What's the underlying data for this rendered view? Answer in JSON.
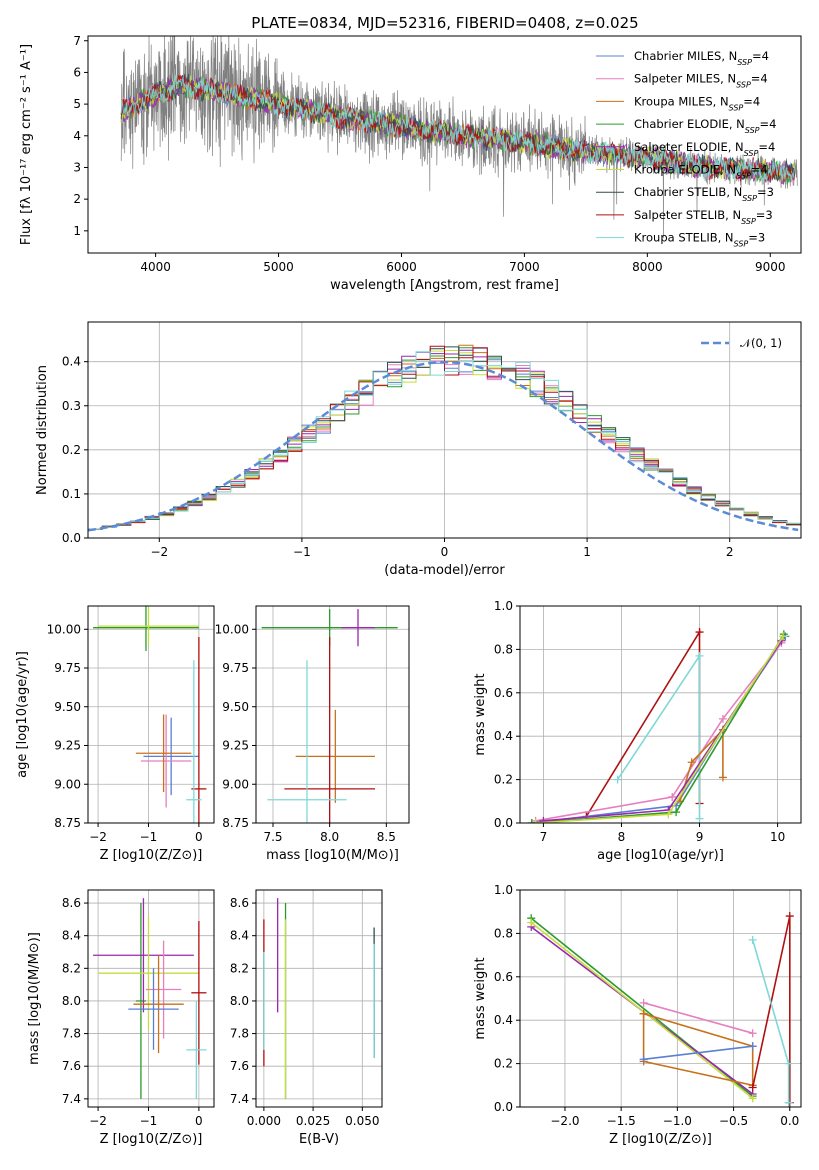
{
  "figure": {
    "title": "PLATE=0834, MJD=52316, FIBERID=0408, z=0.025"
  },
  "chart_data": [
    {
      "id": "spectrum",
      "type": "line",
      "xlabel": "wavelength [Angstrom, rest frame]",
      "ylabel": "Flux [fλ 10⁻¹⁷ erg cm⁻² s⁻¹ A⁻¹]",
      "xlim": [
        3450,
        9250
      ],
      "ylim": [
        0.3,
        7.15
      ],
      "xticks": [
        4000,
        5000,
        6000,
        7000,
        8000,
        9000
      ],
      "yticks": [
        1,
        2,
        3,
        4,
        5,
        6,
        7
      ],
      "grid": false,
      "legend_position": "top-right",
      "observed_color": "#808080",
      "continuum_points": [
        [
          3720,
          4.8
        ],
        [
          3800,
          4.9
        ],
        [
          4000,
          5.3
        ],
        [
          4200,
          5.6
        ],
        [
          4500,
          5.4
        ],
        [
          5000,
          5.0
        ],
        [
          5500,
          4.6
        ],
        [
          6000,
          4.3
        ],
        [
          6500,
          4.0
        ],
        [
          7000,
          3.8
        ],
        [
          7500,
          3.5
        ],
        [
          8000,
          3.3
        ],
        [
          8500,
          3.0
        ],
        [
          9000,
          2.9
        ],
        [
          9200,
          2.8
        ]
      ],
      "series": [
        {
          "name": "Chabrier MILES, N",
          "sub": "SSP",
          "suffix": "=4",
          "color": "#5b7fd6"
        },
        {
          "name": "Salpeter MILES, N",
          "sub": "SSP",
          "suffix": "=4",
          "color": "#e77fbf"
        },
        {
          "name": "Kroupa MILES, N",
          "sub": "SSP",
          "suffix": "=4",
          "color": "#c8711c"
        },
        {
          "name": "Chabrier ELODIE, N",
          "sub": "SSP",
          "suffix": "=4",
          "color": "#2e9a2e"
        },
        {
          "name": "Salpeter ELODIE, N",
          "sub": "SSP",
          "suffix": "=4",
          "color": "#9c27b0"
        },
        {
          "name": "Kroupa ELODIE, N",
          "sub": "SSP",
          "suffix": "=4",
          "color": "#c6dd3e"
        },
        {
          "name": "Chabrier STELIB, N",
          "sub": "SSP",
          "suffix": "=3",
          "color": "#2f4f4f"
        },
        {
          "name": "Salpeter STELIB, N",
          "sub": "SSP",
          "suffix": "=3",
          "color": "#b01010"
        },
        {
          "name": "Kroupa STELIB, N",
          "sub": "SSP",
          "suffix": "=3",
          "color": "#7fd8d8"
        }
      ]
    },
    {
      "id": "residuals",
      "type": "line",
      "xlabel": "(data-model)/error",
      "ylabel": "Normed distribution",
      "xlim": [
        -2.5,
        2.5
      ],
      "ylim": [
        0,
        0.49
      ],
      "xticks": [
        -2,
        -1,
        0,
        1,
        2
      ],
      "yticks": [
        0.0,
        0.1,
        0.2,
        0.3,
        0.4
      ],
      "grid": true,
      "legend_position": "top-right",
      "reference_curve": {
        "name": "𝒩(0, 1)",
        "mean": 0,
        "sigma": 1,
        "color": "#5b8bd6"
      },
      "bin_width": 0.1
    },
    {
      "id": "age-vs-Z",
      "type": "scatter",
      "xlabel": "Z [log10(Z/Z⊙)]",
      "ylabel": "age  [log10(age/yr)]",
      "xlim": [
        -2.2,
        0.3
      ],
      "ylim": [
        8.75,
        10.15
      ],
      "xticks": [
        -2,
        -1,
        0
      ],
      "yticks": [
        8.75,
        9.0,
        9.25,
        9.5,
        9.75,
        10.0
      ],
      "grid": true,
      "points": [
        {
          "x": -1.05,
          "y": 10.01,
          "xerr": 1.05,
          "yerr": 0.15,
          "color": "#2e9a2e"
        },
        {
          "x": -1.0,
          "y": 10.02,
          "xerr": 1.0,
          "yerr": 0.12,
          "color": "#c6dd3e"
        },
        {
          "x": -0.55,
          "y": 9.18,
          "xerr": 0.55,
          "yerr": 0.25,
          "color": "#5b7fd6"
        },
        {
          "x": -0.65,
          "y": 9.15,
          "xerr": 0.5,
          "yerr": 0.3,
          "color": "#e77fbf"
        },
        {
          "x": -0.7,
          "y": 9.2,
          "xerr": 0.55,
          "yerr": 0.25,
          "color": "#c8711c"
        },
        {
          "x": 0.0,
          "y": 8.97,
          "xerr": 0.15,
          "yerr": 0.98,
          "color": "#b01010"
        },
        {
          "x": -0.1,
          "y": 8.9,
          "xerr": 0.15,
          "yerr": 0.9,
          "color": "#7fd8d8"
        }
      ]
    },
    {
      "id": "age-vs-mass",
      "type": "scatter",
      "xlabel": "mass [log10(M/M⊙)]",
      "ylabel": "",
      "xlim": [
        7.35,
        8.7
      ],
      "ylim": [
        8.75,
        10.15
      ],
      "xticks": [
        7.5,
        8.0,
        8.5
      ],
      "yticks": [
        8.75,
        9.0,
        9.25,
        9.5,
        9.75,
        10.0
      ],
      "grid": true,
      "points": [
        {
          "x": 8.0,
          "y": 10.01,
          "xerr": 0.6,
          "yerr": 0.12,
          "color": "#2e9a2e"
        },
        {
          "x": 8.25,
          "y": 10.01,
          "xerr": 0.15,
          "yerr": 0.12,
          "color": "#9c27b0"
        },
        {
          "x": 8.05,
          "y": 9.18,
          "xerr": 0.35,
          "yerr": 0.3,
          "color": "#c8711c"
        },
        {
          "x": 8.0,
          "y": 8.97,
          "xerr": 0.4,
          "yerr": 0.98,
          "color": "#b01010"
        },
        {
          "x": 7.8,
          "y": 8.9,
          "xerr": 0.35,
          "yerr": 0.9,
          "color": "#7fd8d8"
        }
      ]
    },
    {
      "id": "weight-vs-age",
      "type": "line",
      "xlabel": "age  [log10(age/yr)]",
      "ylabel": "mass weight",
      "xlim": [
        6.7,
        10.3
      ],
      "ylim": [
        0,
        1.0
      ],
      "xticks": [
        7,
        8,
        9,
        10
      ],
      "yticks": [
        0.0,
        0.2,
        0.4,
        0.6,
        0.8,
        1.0
      ],
      "grid": true,
      "series": [
        {
          "color": "#b01010",
          "x": [
            7.55,
            9.0,
            9.0
          ],
          "y": [
            0.03,
            0.88,
            0.09
          ]
        },
        {
          "color": "#7fd8d8",
          "x": [
            7.95,
            9.0,
            9.0
          ],
          "y": [
            0.2,
            0.77,
            0.02
          ]
        },
        {
          "color": "#5b7fd6",
          "x": [
            6.85,
            8.7,
            9.3,
            10.1
          ],
          "y": [
            0.0,
            0.08,
            0.43,
            0.86
          ]
        },
        {
          "color": "#e77fbf",
          "x": [
            6.9,
            8.65,
            9.3,
            10.05
          ],
          "y": [
            0.01,
            0.12,
            0.48,
            0.83
          ]
        },
        {
          "color": "#c8711c",
          "x": [
            8.75,
            8.9,
            9.3,
            9.3
          ],
          "y": [
            0.1,
            0.28,
            0.43,
            0.21
          ]
        },
        {
          "color": "#2e9a2e",
          "x": [
            6.85,
            8.7,
            10.08
          ],
          "y": [
            0.0,
            0.05,
            0.87
          ]
        },
        {
          "color": "#9c27b0",
          "x": [
            7.0,
            8.6,
            10.05
          ],
          "y": [
            0.01,
            0.06,
            0.84
          ]
        },
        {
          "color": "#c6dd3e",
          "x": [
            6.9,
            8.6,
            10.07
          ],
          "y": [
            0.0,
            0.04,
            0.86
          ]
        }
      ]
    },
    {
      "id": "mass-vs-Z",
      "type": "scatter",
      "xlabel": "Z [log10(Z/Z⊙)]",
      "ylabel": "mass [log10(M/M⊙)]",
      "xlim": [
        -2.2,
        0.3
      ],
      "ylim": [
        7.35,
        8.68
      ],
      "xticks": [
        -2,
        -1,
        0
      ],
      "yticks": [
        7.4,
        7.6,
        7.8,
        8.0,
        8.2,
        8.4,
        8.6
      ],
      "grid": true,
      "points": [
        {
          "x": -1.15,
          "y": 8.0,
          "xerr": 0.1,
          "yerr": 0.6,
          "color": "#2e9a2e"
        },
        {
          "x": -1.1,
          "y": 8.28,
          "xerr": 1.0,
          "yerr": 0.35,
          "color": "#9c27b0"
        },
        {
          "x": -1.0,
          "y": 8.17,
          "xerr": 1.0,
          "yerr": 0.35,
          "color": "#c6dd3e"
        },
        {
          "x": -0.7,
          "y": 8.07,
          "xerr": 0.35,
          "yerr": 0.3,
          "color": "#e77fbf"
        },
        {
          "x": -0.8,
          "y": 7.98,
          "xerr": 0.5,
          "yerr": 0.3,
          "color": "#c8711c"
        },
        {
          "x": -0.9,
          "y": 7.95,
          "xerr": 0.5,
          "yerr": 0.25,
          "color": "#5b7fd6"
        },
        {
          "x": 0.0,
          "y": 8.05,
          "xerr": 0.15,
          "yerr": 0.44,
          "color": "#b01010"
        },
        {
          "x": -0.05,
          "y": 7.7,
          "xerr": 0.2,
          "yerr": 0.3,
          "color": "#7fd8d8"
        }
      ]
    },
    {
      "id": "mass-vs-ebv",
      "type": "scatter",
      "xlabel": "E(B-V)",
      "ylabel": "",
      "xlim": [
        -0.004,
        0.06
      ],
      "ylim": [
        7.35,
        8.68
      ],
      "xticks": [
        0.0,
        0.025,
        0.05
      ],
      "yticks": [
        7.4,
        7.6,
        7.8,
        8.0,
        8.2,
        8.4,
        8.6
      ],
      "grid": true,
      "points": [
        {
          "x": 0.0,
          "y": 8.05,
          "xerr": 0,
          "yerr": 0.45,
          "color": "#b01010"
        },
        {
          "x": 0.0,
          "y": 8.0,
          "xerr": 0,
          "yerr": 0.3,
          "color": "#7fd8d8"
        },
        {
          "x": 0.007,
          "y": 8.28,
          "xerr": 0,
          "yerr": 0.35,
          "color": "#9c27b0"
        },
        {
          "x": 0.011,
          "y": 8.0,
          "xerr": 0,
          "yerr": 0.6,
          "color": "#2e9a2e"
        },
        {
          "x": 0.011,
          "y": 7.95,
          "xerr": 0,
          "yerr": 0.55,
          "color": "#c6dd3e"
        },
        {
          "x": 0.056,
          "y": 8.05,
          "xerr": 0,
          "yerr": 0.4,
          "color": "#2f4f4f"
        },
        {
          "x": 0.056,
          "y": 8.0,
          "xerr": 0,
          "yerr": 0.35,
          "color": "#7fd8d8"
        }
      ]
    },
    {
      "id": "weight-vs-Z",
      "type": "line",
      "xlabel": "Z [log10(Z/Z⊙)]",
      "ylabel": "mass weight",
      "xlim": [
        -2.4,
        0.1
      ],
      "ylim": [
        0,
        1.0
      ],
      "xticks": [
        -2.0,
        -1.5,
        -1.0,
        -0.5,
        0.0
      ],
      "yticks": [
        0.0,
        0.2,
        0.4,
        0.6,
        0.8,
        1.0
      ],
      "grid": true,
      "series": [
        {
          "color": "#2e9a2e",
          "x": [
            -2.3,
            -0.33
          ],
          "y": [
            0.87,
            0.05
          ]
        },
        {
          "color": "#9c27b0",
          "x": [
            -2.3,
            -0.33
          ],
          "y": [
            0.83,
            0.06
          ]
        },
        {
          "color": "#c6dd3e",
          "x": [
            -2.3,
            -0.33
          ],
          "y": [
            0.85,
            0.04
          ]
        },
        {
          "color": "#e77fbf",
          "x": [
            -1.3,
            -0.33
          ],
          "y": [
            0.48,
            0.34
          ]
        },
        {
          "color": "#c8711c",
          "x": [
            -1.3,
            -0.33,
            -0.33,
            -1.3,
            -1.3
          ],
          "y": [
            0.43,
            0.28,
            0.1,
            0.21,
            0.43
          ]
        },
        {
          "color": "#5b7fd6",
          "x": [
            -1.3,
            -0.33
          ],
          "y": [
            0.22,
            0.28
          ]
        },
        {
          "color": "#b01010",
          "x": [
            -0.33,
            0.0,
            0.0
          ],
          "y": [
            0.09,
            0.88,
            0.02
          ]
        },
        {
          "color": "#7fd8d8",
          "x": [
            -0.33,
            -0.01,
            -0.01
          ],
          "y": [
            0.77,
            0.2,
            0.02
          ]
        }
      ]
    }
  ]
}
